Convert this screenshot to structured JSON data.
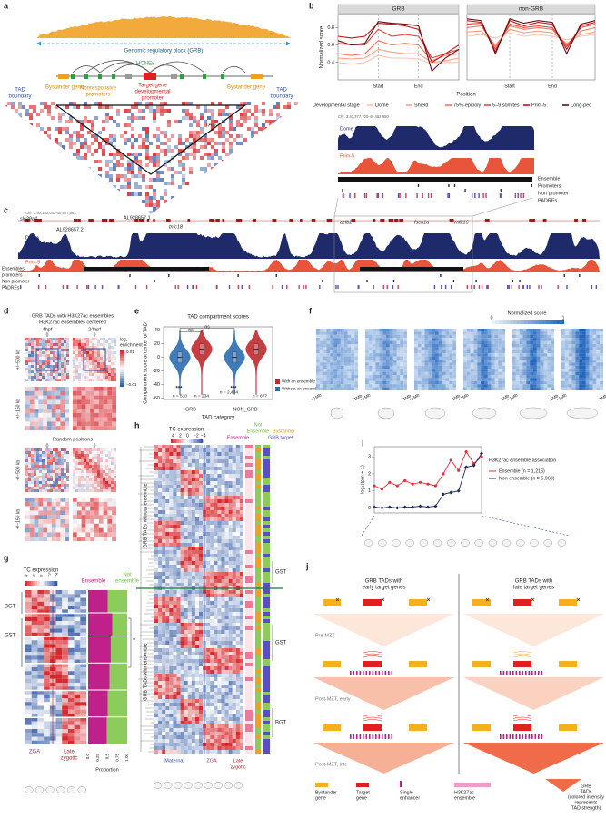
{
  "panel_labels": [
    "a",
    "b",
    "c",
    "d",
    "e",
    "f",
    "g",
    "h",
    "i",
    "j"
  ],
  "a": {
    "grb_label": "Genomic regulatory block (GRB)",
    "hcnes": "HCNEs",
    "bystander_left": "Bystander gene",
    "bystander_right": "Bystander gene",
    "nonresponsive": [
      "Nonresponsive",
      "promoters"
    ],
    "target": [
      "Target gene",
      "developmental",
      "promoter"
    ],
    "tad_boundary_left": [
      "TAD",
      "boundary"
    ],
    "tad_boundary_right": [
      "TAD",
      "boundary"
    ],
    "tad": "TAD"
  },
  "b_tracks": {
    "coord": "Chr. 3:40,377,700-40,462,950",
    "dome": "Dome",
    "prim5": "Prim-5",
    "rows": [
      "Ensemble",
      "Promoters",
      "Non promoter",
      "PADREs"
    ]
  },
  "c": {
    "coord": "Chr. 3:40,182,043-40,527,584",
    "genes": [
      "slc29a4",
      "AL928657.2",
      "AL928657.1",
      "tnfc18",
      "actb2",
      "fscn1a",
      "rnf216"
    ],
    "dome": "Dome",
    "prim5": "Prim-5",
    "rows": [
      "Ensembles",
      "promoters",
      "Non promoter",
      "PADREs"
    ]
  },
  "d": {
    "title": [
      "GRB TADs with H3K27ac ensembles",
      "H3K27ac ensembles centered"
    ],
    "columns": [
      "4hpf",
      "24hpf"
    ],
    "zero": "0",
    "rows": [
      "+/−500 kb",
      "+/−150 kb"
    ],
    "colorbar_title": [
      "log₂",
      "enrichment"
    ],
    "colorbar_ticks": [
      "0.01",
      "−0.01"
    ],
    "random": "Random positions"
  },
  "f": {
    "colorbar_title": "Normalized score",
    "colorbar_ticks": [
      "0",
      "1"
    ],
    "left": "−1Mb",
    "right": "1Mb"
  },
  "g": {
    "title": "TC expression",
    "scale": [
      "4",
      "2",
      "0",
      "−2",
      "−4"
    ],
    "ensemble": "Ensemble",
    "not_ensemble": [
      "Not",
      "ensemble"
    ],
    "groups": [
      "BGT",
      "GST"
    ],
    "star": "*",
    "zga": "ZGA",
    "late": [
      "Late",
      "zygotic"
    ],
    "proportion_ticks": [
      "0.0",
      "0.25",
      "0.5",
      "0.75",
      "1.00"
    ],
    "proportion": "Proportion"
  },
  "h": {
    "title": "TC expression",
    "scale": [
      "4",
      "2",
      "0",
      "−2",
      "−4"
    ],
    "not": "Not",
    "ensemble_green": "Ensemble",
    "bystander": "Bystander",
    "ensemble": "Ensemble",
    "grb_target": "GRB target",
    "rows": [
      "GRB TADs without ensemble",
      "GRB TADs with ensemble"
    ],
    "brackets": [
      "GST",
      "GST",
      "BGT"
    ],
    "maternal": "Maternal",
    "zga": "ZGA",
    "late": [
      "Late",
      "zygotic"
    ]
  },
  "j": {
    "columns": [
      [
        "GRB TADs with",
        "early target genes"
      ],
      [
        "GRB TADs with",
        "late target genes"
      ]
    ],
    "stages": [
      "Pre-MZT",
      "Post-MZT, early",
      "Post-MZT, late"
    ],
    "legend": [
      [
        "Bystander",
        "gene"
      ],
      [
        "Target",
        "gene"
      ],
      [
        "Single",
        "enhancer"
      ],
      [
        "H3K27ac",
        "ensemble"
      ],
      [
        "GRB",
        "TADs",
        "(colored intensity",
        "represents",
        "TAD strength)"
      ]
    ]
  },
  "chart_data": [
    {
      "type": "line",
      "title": "GRB",
      "x_label": "Position",
      "y_label": "Normalized score",
      "legend_title": "Developmental stage",
      "categories": [
        null,
        null,
        null,
        "Start",
        null,
        null,
        "End",
        null,
        null,
        null
      ],
      "ylim": [
        0.2,
        0.95
      ],
      "yticks": [
        0.4,
        0.6,
        0.8
      ],
      "series": [
        {
          "name": "Dome",
          "color": "#fcc5b0",
          "values": [
            0.4,
            0.38,
            0.4,
            0.48,
            0.45,
            0.45,
            0.44,
            0.38,
            0.4,
            0.4
          ]
        },
        {
          "name": "Shield",
          "color": "#fc9e80",
          "values": [
            0.45,
            0.44,
            0.45,
            0.55,
            0.52,
            0.5,
            0.5,
            0.4,
            0.42,
            0.45
          ]
        },
        {
          "name": "75%-epiboly",
          "color": "#f8735a",
          "values": [
            0.5,
            0.48,
            0.5,
            0.65,
            0.6,
            0.62,
            0.6,
            0.42,
            0.48,
            0.5
          ]
        },
        {
          "name": "5–9 somites",
          "color": "#e8453a",
          "values": [
            0.62,
            0.6,
            0.6,
            0.78,
            0.7,
            0.72,
            0.7,
            0.45,
            0.5,
            0.55
          ]
        },
        {
          "name": "Prim-5",
          "color": "#c0161e",
          "values": [
            0.7,
            0.68,
            0.7,
            0.85,
            0.84,
            0.82,
            0.78,
            0.4,
            0.5,
            0.6
          ]
        },
        {
          "name": "Long-pec",
          "color": "#6b0a14",
          "values": [
            0.65,
            0.6,
            0.62,
            0.87,
            0.85,
            0.84,
            0.82,
            0.3,
            0.45,
            0.55
          ]
        }
      ]
    },
    {
      "type": "line",
      "title": "non-GRB",
      "categories": [
        null,
        null,
        null,
        "Start",
        null,
        null,
        "End",
        null,
        null,
        null
      ],
      "ylim": [
        0.2,
        0.95
      ],
      "series": [
        {
          "color": "#fcc5b0",
          "values": [
            0.7,
            0.72,
            0.68,
            0.74,
            0.7,
            0.72,
            0.7,
            0.66,
            0.7,
            0.72
          ]
        },
        {
          "color": "#fc9e80",
          "values": [
            0.75,
            0.76,
            0.6,
            0.78,
            0.74,
            0.76,
            0.74,
            0.62,
            0.72,
            0.75
          ]
        },
        {
          "color": "#f8735a",
          "values": [
            0.8,
            0.82,
            0.58,
            0.82,
            0.78,
            0.8,
            0.78,
            0.6,
            0.76,
            0.8
          ]
        },
        {
          "color": "#e8453a",
          "values": [
            0.84,
            0.85,
            0.55,
            0.84,
            0.8,
            0.82,
            0.8,
            0.58,
            0.8,
            0.84
          ]
        },
        {
          "color": "#c0161e",
          "values": [
            0.88,
            0.86,
            0.52,
            0.88,
            0.82,
            0.86,
            0.84,
            0.55,
            0.82,
            0.86
          ]
        },
        {
          "color": "#6b0a14",
          "values": [
            0.9,
            0.88,
            0.5,
            0.9,
            0.85,
            0.88,
            0.86,
            0.5,
            0.84,
            0.88
          ]
        }
      ]
    },
    {
      "type": "violin",
      "title": "TAD compartment scores",
      "x_label": "TAD category",
      "y_label": "Compartment score at center of TAD",
      "categories": [
        "GRB",
        "NON_GRB"
      ],
      "ylim": [
        -62,
        45
      ],
      "yticks": [
        -60,
        -40,
        -20,
        0,
        20,
        40
      ],
      "series": [
        {
          "name": "With an ensemble",
          "color": "#c0282d",
          "values": [
            12,
            12
          ]
        },
        {
          "name": "Without an ensemble",
          "color": "#2a6db0",
          "values": [
            0,
            0
          ]
        }
      ],
      "annotations": [
        "ns",
        "ns",
        "***",
        "***"
      ],
      "n_labels": [
        "n = 510",
        "n = 234",
        "n = 2,434",
        "n = 677"
      ]
    },
    {
      "type": "line",
      "y_label": "log₂(tpm + 1)",
      "legend_title": "H3K27ac ensemble association",
      "categories": [
        null,
        null,
        null,
        null,
        null,
        null,
        null,
        null,
        null,
        null,
        null,
        null,
        null,
        null,
        null
      ],
      "ylim": [
        -0.3,
        3.6
      ],
      "yticks": [
        0,
        1,
        2,
        3
      ],
      "series": [
        {
          "name": "Ensemble (n = 1,216)",
          "color": "#e0303a",
          "values": [
            1.3,
            1.1,
            1.5,
            1.3,
            1.6,
            1.4,
            1.5,
            1.4,
            1.3,
            2.0,
            2.8,
            2.2,
            3.3,
            2.6,
            3.0
          ]
        },
        {
          "name": "Non ensemble (n = 5,968)",
          "color": "#1e2a5a",
          "values": [
            0.05,
            0.0,
            0.05,
            0.0,
            0.05,
            0.05,
            0.1,
            0.05,
            0.1,
            0.8,
            0.9,
            1.0,
            2.4,
            2.5,
            3.2
          ]
        }
      ]
    }
  ]
}
